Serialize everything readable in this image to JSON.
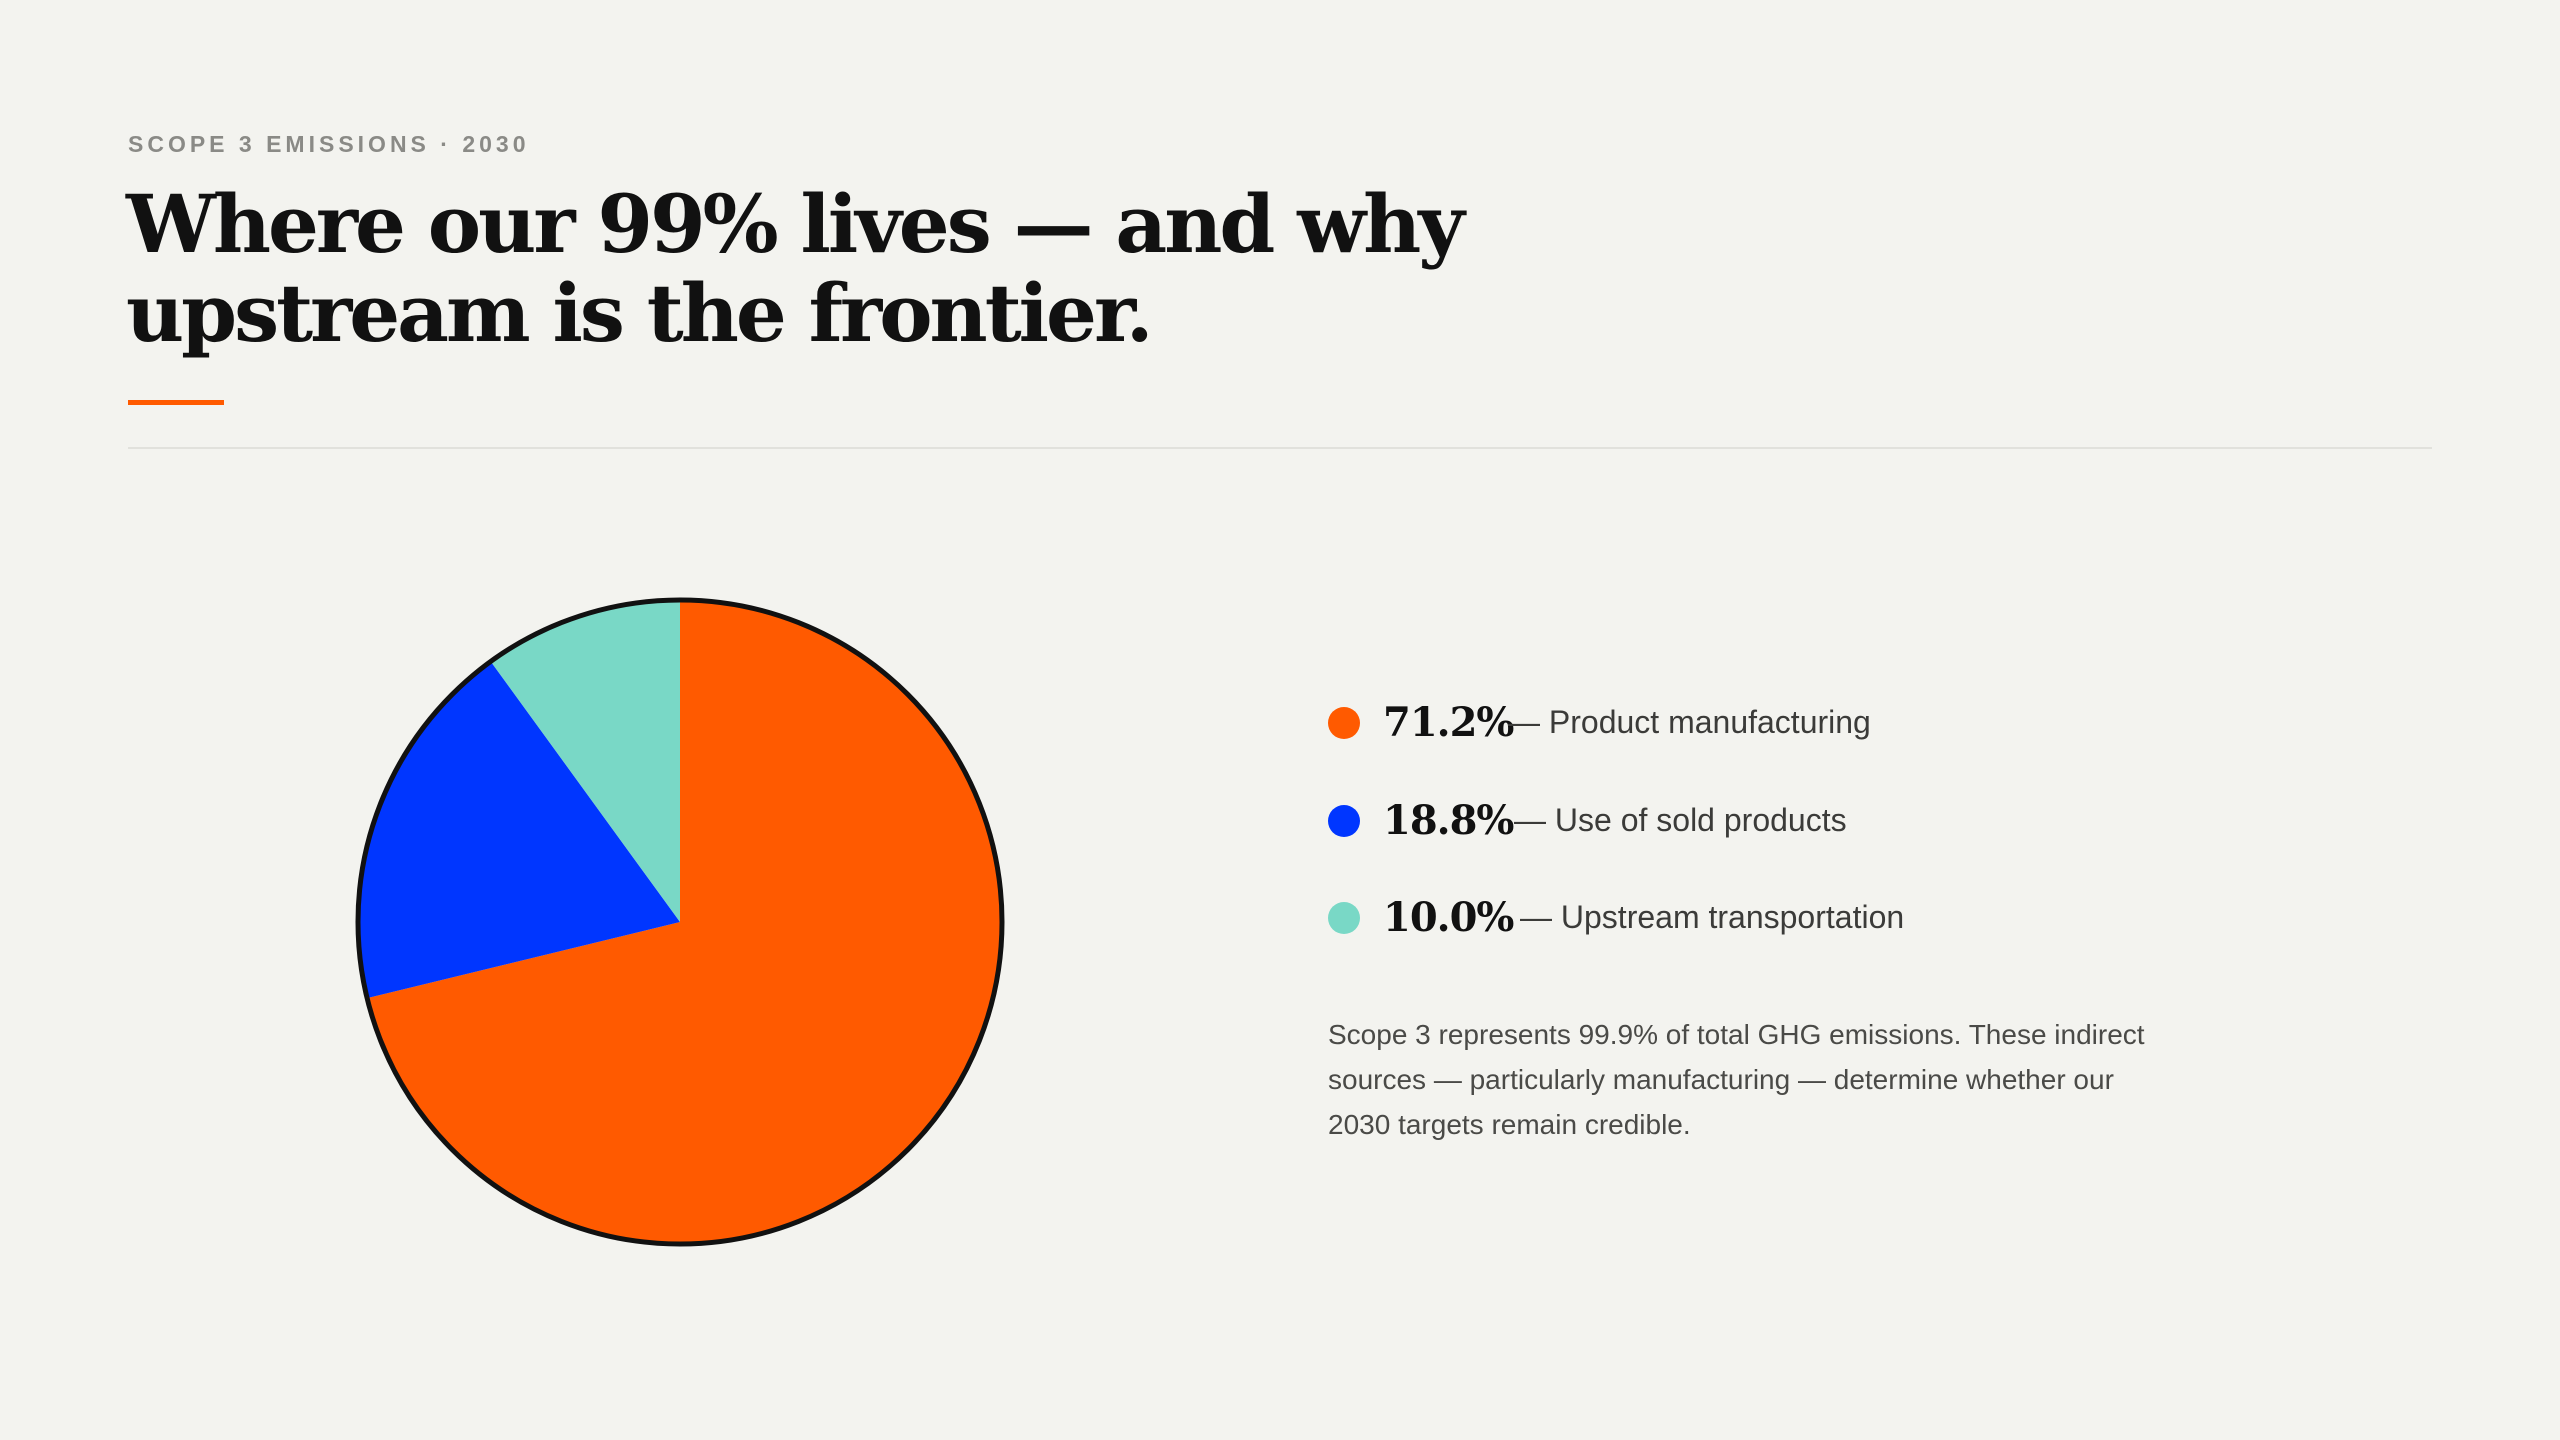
{
  "eyebrow": "SCOPE 3 EMISSIONS · 2030",
  "title": "Where our 99% lives — and why upstream is the frontier.",
  "note": "Scope 3 represents 99.9% of total GHG emissions. These indirect sources — particularly manufacturing — determine whether our 2030 targets remain credible.",
  "colors": {
    "accent": "#ff5a00",
    "background": "#f3f3ef",
    "pie_outline": "#111111"
  },
  "chart_data": {
    "type": "pie",
    "start_angle": "12 o'clock",
    "direction": "clockwise",
    "slices": [
      {
        "label": "Product manufacturing",
        "value": 71.2,
        "display": "71.2%",
        "color": "#ff5a00"
      },
      {
        "label": "Use of sold products",
        "value": 18.8,
        "display": "18.8%",
        "color": "#0036ff"
      },
      {
        "label": "Upstream transportation",
        "value": 10.0,
        "display": "10.0%",
        "color": "#79d8c6"
      }
    ]
  },
  "legend": [
    {
      "value": "71.2%",
      "label": "— Product manufacturing"
    },
    {
      "value": "18.8%",
      "label": "— Use of sold products"
    },
    {
      "value": "10.0%",
      "label": "— Upstream transportation"
    }
  ]
}
